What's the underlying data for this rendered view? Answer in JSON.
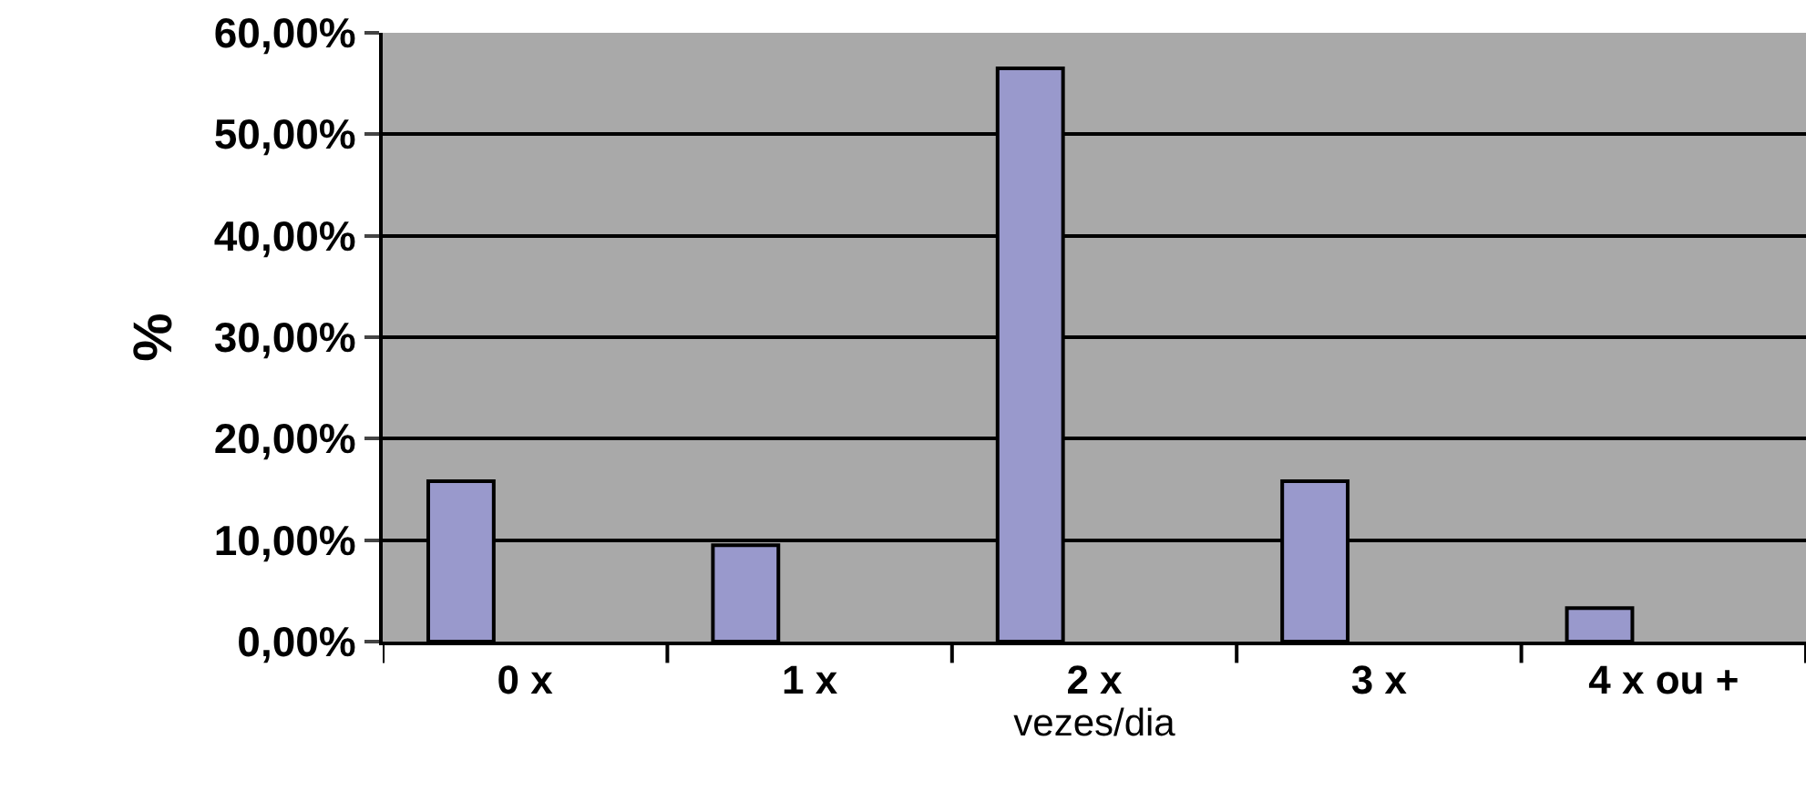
{
  "chart_data": {
    "type": "bar",
    "xlabel": "vezes/dia",
    "ylabel": "%",
    "categories": [
      "0 x",
      "1 x",
      "2 x",
      "3 x",
      "4 x ou +"
    ],
    "values": [
      15.8,
      9.5,
      56.5,
      15.8,
      3.3
    ],
    "color": "#9999cc",
    "ylim": [
      0,
      60
    ],
    "yticks": [
      {
        "value": 0,
        "label": "0,00%"
      },
      {
        "value": 10,
        "label": "10,00%"
      },
      {
        "value": 20,
        "label": "20,00%"
      },
      {
        "value": 30,
        "label": "30,00%"
      },
      {
        "value": 40,
        "label": "40,00%"
      },
      {
        "value": 50,
        "label": "50,00%"
      },
      {
        "value": 60,
        "label": "60,00%"
      }
    ],
    "grid": "y",
    "legend": false
  }
}
